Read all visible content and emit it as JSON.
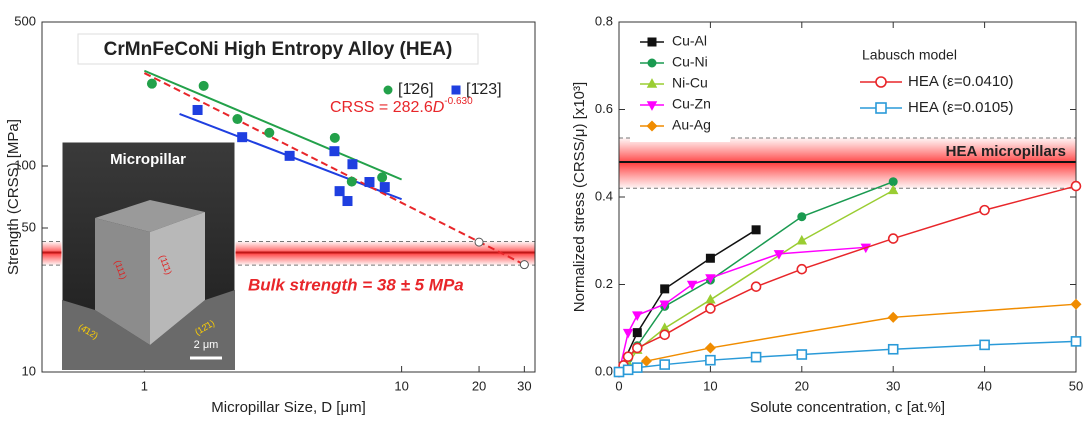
{
  "chart_data": [
    {
      "type": "scatter",
      "title": "CrMnFeCoNi High Entropy Alloy (HEA)",
      "x_label": "Micropillar Size, D [μm]",
      "y_label": "Strength (CRSS) [MPa]",
      "xscale": "log",
      "yscale": "log",
      "xlim": [
        0.4,
        33
      ],
      "ylim": [
        10,
        500
      ],
      "xticks": [
        1,
        10,
        20,
        30
      ],
      "yticks": [
        10,
        50,
        100,
        500
      ],
      "series": [
        {
          "name": "[1̄26]",
          "color": "#23a14a",
          "marker": "circle",
          "x": [
            1.07,
            1.7,
            2.3,
            3.06,
            5.5,
            6.4,
            8.4
          ],
          "values": [
            251,
            245,
            169,
            145,
            137,
            84,
            88
          ]
        },
        {
          "name": "[1̄23]",
          "color": "#1f3fe0",
          "marker": "square",
          "x": [
            1.61,
            2.4,
            3.67,
            5.48,
            5.74,
            6.16,
            6.44,
            7.5,
            8.6
          ],
          "values": [
            187,
            138,
            112,
            118,
            75.5,
            67.6,
            102,
            83.6,
            79
          ]
        }
      ],
      "fit_lines": [
        {
          "color": "#23a14a",
          "x": [
            1,
            10
          ],
          "values": [
            290,
            86
          ]
        },
        {
          "color": "#1f3fe0",
          "x": [
            1.37,
            10
          ],
          "values": [
            179,
            69
          ]
        },
        {
          "color": "#e8262a",
          "dashed": true,
          "x": [
            1,
            30
          ],
          "values": [
            282.6,
            33.2
          ]
        }
      ],
      "open_points": {
        "x": [
          20,
          30
        ],
        "values": [
          42.7,
          33.2
        ]
      },
      "band": {
        "center": 38,
        "low": 33,
        "high": 43
      },
      "fit_label": [
        "CRSS = 282.6",
        "D",
        "-0.630"
      ],
      "band_label": "Bulk strength = 38 ± 5 MPa",
      "inset": {
        "title": "Micropillar",
        "scale_bar": "2 μm",
        "facets": [
          "(111)",
          "(11̄1)",
          "(4̄12)",
          "(12̄1)"
        ]
      }
    },
    {
      "type": "line",
      "x_label": "Solute concentration, c [at.%]",
      "y_label": "Normalized stress (CRSS/μ) [x10³]",
      "xlim": [
        0,
        50
      ],
      "ylim": [
        0,
        0.8
      ],
      "xticks": [
        0,
        10,
        20,
        30,
        40,
        50
      ],
      "yticks": [
        {
          "value": 0,
          "label": "0.0"
        },
        0.2,
        0.4,
        0.6,
        0.8
      ],
      "series": [
        {
          "name": "Cu-Al",
          "color": "#111111",
          "marker": "square",
          "x": [
            0,
            2,
            5,
            10,
            15
          ],
          "values": [
            0,
            0.09,
            0.19,
            0.26,
            0.325
          ]
        },
        {
          "name": "Cu-Ni",
          "color": "#1a9a50",
          "marker": "circle",
          "x": [
            0,
            1,
            2,
            5,
            10,
            20,
            30
          ],
          "values": [
            0,
            0.03,
            0.06,
            0.15,
            0.21,
            0.355,
            0.435
          ]
        },
        {
          "name": "Ni-Cu",
          "color": "#9acd32",
          "marker": "triangle-up",
          "x": [
            0,
            1,
            2,
            5,
            10,
            20,
            30
          ],
          "values": [
            0,
            0.02,
            0.05,
            0.1,
            0.165,
            0.3,
            0.415
          ]
        },
        {
          "name": "Cu-Zn",
          "color": "#ff00ff",
          "marker": "triangle-down",
          "x": [
            0,
            1,
            2,
            5,
            8,
            10,
            17.5,
            27
          ],
          "values": [
            0,
            0.09,
            0.13,
            0.155,
            0.2,
            0.215,
            0.27,
            0.285
          ]
        },
        {
          "name": "Au-Ag",
          "color": "#f08c00",
          "marker": "diamond",
          "x": [
            0,
            3,
            10,
            30,
            50
          ],
          "values": [
            0,
            0.025,
            0.055,
            0.125,
            0.155
          ]
        },
        {
          "name": "HEA (ε=0.0410)",
          "color": "#e8262a",
          "marker": "circle",
          "open": true,
          "x": [
            0,
            0.5,
            1,
            2,
            5,
            10,
            15,
            20,
            30,
            40,
            50
          ],
          "values": [
            0,
            0.015,
            0.035,
            0.055,
            0.085,
            0.145,
            0.195,
            0.235,
            0.305,
            0.37,
            0.425
          ]
        },
        {
          "name": "HEA (ε=0.0105)",
          "color": "#2a9ad8",
          "marker": "square",
          "open": true,
          "x": [
            0,
            1,
            2,
            5,
            10,
            15,
            20,
            30,
            40,
            50
          ],
          "values": [
            0,
            0.005,
            0.01,
            0.017,
            0.027,
            0.034,
            0.04,
            0.052,
            0.062,
            0.07
          ]
        }
      ],
      "legend_title": "Labusch model",
      "band": {
        "center": 0.48,
        "low": 0.42,
        "high": 0.535
      },
      "band_label": "HEA micropillars"
    }
  ]
}
